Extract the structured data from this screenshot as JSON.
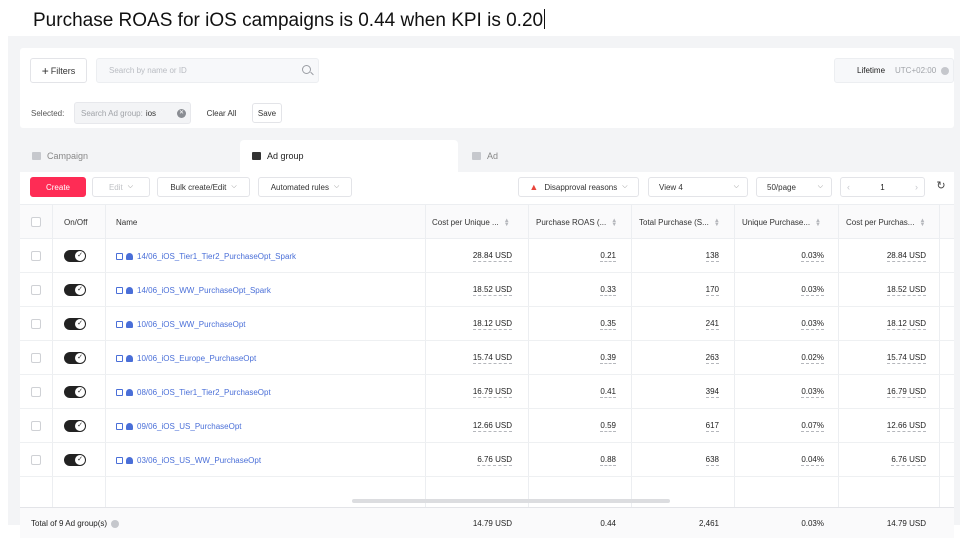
{
  "caption": "Purchase ROAS for iOS campaigns is 0.44 when KPI is 0.20",
  "filters": {
    "filters_label": "Filters",
    "search_placeholder": "Search by name or ID",
    "date_range": "Lifetime",
    "timezone": "UTC+02:00",
    "selected_label": "Selected:",
    "chip_key": "Search Ad group:",
    "chip_value": "ios",
    "clear_all": "Clear All",
    "save": "Save"
  },
  "tabs": [
    {
      "label": "Campaign",
      "icon": "folder-icon",
      "active": false
    },
    {
      "label": "Ad group",
      "icon": "grid-icon",
      "active": true
    },
    {
      "label": "Ad",
      "icon": "document-icon",
      "active": false
    }
  ],
  "toolbar": {
    "create": "Create",
    "edit": "Edit",
    "bulk": "Bulk create/Edit",
    "automated": "Automated rules",
    "disapproval": "Disapproval reasons",
    "view": "View 4",
    "per_page": "50/page",
    "page": "1"
  },
  "columns": {
    "onoff": "On/Off",
    "name": "Name",
    "cpu": "Cost per Unique ...",
    "roas": "Purchase ROAS (...",
    "total": "Total Purchase (S...",
    "unique": "Unique Purchase...",
    "cpp": "Cost per Purchas..."
  },
  "rows": [
    {
      "name": "14/06_iOS_Tier1_Tier2_PurchaseOpt_Spark",
      "cpu": "28.84 USD",
      "roas": "0.21",
      "total": "138",
      "unique": "0.03%",
      "cpp": "28.84 USD"
    },
    {
      "name": "14/06_iOS_WW_PurchaseOpt_Spark",
      "cpu": "18.52 USD",
      "roas": "0.33",
      "total": "170",
      "unique": "0.03%",
      "cpp": "18.52 USD"
    },
    {
      "name": "10/06_iOS_WW_PurchaseOpt",
      "cpu": "18.12 USD",
      "roas": "0.35",
      "total": "241",
      "unique": "0.03%",
      "cpp": "18.12 USD"
    },
    {
      "name": "10/06_iOS_Europe_PurchaseOpt",
      "cpu": "15.74 USD",
      "roas": "0.39",
      "total": "263",
      "unique": "0.02%",
      "cpp": "15.74 USD"
    },
    {
      "name": "08/06_iOS_Tier1_Tier2_PurchaseOpt",
      "cpu": "16.79 USD",
      "roas": "0.41",
      "total": "394",
      "unique": "0.03%",
      "cpp": "16.79 USD"
    },
    {
      "name": "09/06_iOS_US_PurchaseOpt",
      "cpu": "12.66 USD",
      "roas": "0.59",
      "total": "617",
      "unique": "0.07%",
      "cpp": "12.66 USD"
    },
    {
      "name": "03/06_iOS_US_WW_PurchaseOpt",
      "cpu": "6.76 USD",
      "roas": "0.88",
      "total": "638",
      "unique": "0.04%",
      "cpp": "6.76 USD"
    }
  ],
  "totals": {
    "label": "Total of 9 Ad group(s)",
    "cpu": "14.79 USD",
    "roas": "0.44",
    "total": "2,461",
    "unique": "0.03%",
    "cpp": "14.79 USD"
  }
}
